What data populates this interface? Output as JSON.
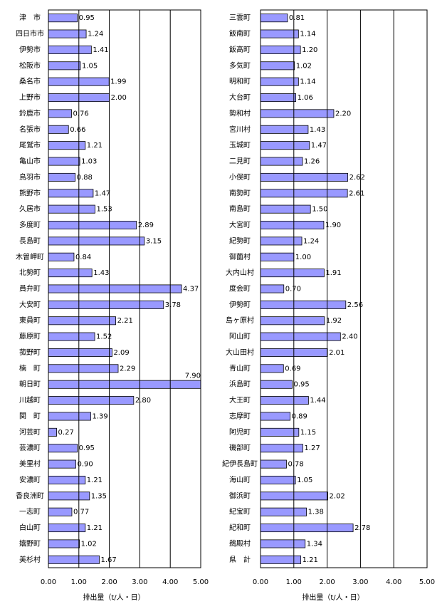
{
  "chart_data": [
    {
      "type": "hbar",
      "xlabel": "排出量（t/人・日）",
      "color": "#9999ff",
      "categories": [
        "津　市",
        "四日市市",
        "伊勢市",
        "松阪市",
        "桑名市",
        "上野市",
        "鈴鹿市",
        "名張市",
        "尾鷲市",
        "亀山市",
        "鳥羽市",
        "熊野市",
        "久居市",
        "多度町",
        "長島町",
        "木曽岬町",
        "北勢町",
        "員弁町",
        "大安町",
        "東員町",
        "藤原町",
        "菰野町",
        "楠　町",
        "朝日町",
        "川越町",
        "関　町",
        "河芸町",
        "芸濃町",
        "美里村",
        "安濃町",
        "香良洲町",
        "一志町",
        "白山町",
        "嬉野町",
        "美杉村"
      ],
      "values": [
        0.95,
        1.24,
        1.41,
        1.05,
        1.99,
        2.0,
        0.76,
        0.66,
        1.21,
        1.03,
        0.88,
        1.47,
        1.53,
        2.89,
        3.15,
        0.84,
        1.43,
        4.37,
        3.78,
        2.21,
        1.52,
        2.09,
        2.29,
        7.9,
        2.8,
        1.39,
        0.27,
        0.95,
        0.9,
        1.21,
        1.35,
        0.77,
        1.21,
        1.02,
        1.67
      ],
      "value_labels": [
        "0.95",
        "1.24",
        "1.41",
        "1.05",
        "1.99",
        "2.00",
        "0.76",
        "0.66",
        "1.21",
        "1.03",
        "0.88",
        "1.47",
        "1.53",
        "2.89",
        "3.15",
        "0.84",
        "1.43",
        "4.37",
        "3.78",
        "2.21",
        "1.52",
        "2.09",
        "2.29",
        "7.90",
        "2.80",
        "1.39",
        "0.27",
        "0.95",
        "0.90",
        "1.21",
        "1.35",
        "0.77",
        "1.21",
        "1.02",
        "1.67"
      ],
      "xlim": [
        0,
        5
      ],
      "xticks": [
        {
          "value": 0,
          "label": "0.00"
        },
        {
          "value": 1,
          "label": "1.00"
        },
        {
          "value": 2,
          "label": "2.00"
        },
        {
          "value": 3,
          "label": "3.00"
        },
        {
          "value": 4,
          "label": "4.00"
        },
        {
          "value": 5,
          "label": "5.00"
        }
      ],
      "grid": true
    },
    {
      "type": "hbar",
      "xlabel": "排出量（t/人・日）",
      "color": "#9999ff",
      "categories": [
        "三雲町",
        "飯南町",
        "飯高町",
        "多気町",
        "明和町",
        "大台町",
        "勢和村",
        "宮川村",
        "玉城町",
        "二見町",
        "小俣町",
        "南勢町",
        "南島町",
        "大宮町",
        "紀勢町",
        "御薗村",
        "大内山村",
        "度会町",
        "伊勢町",
        "島ヶ原村",
        "阿山町",
        "大山田村",
        "青山町",
        "浜島町",
        "大王町",
        "志摩町",
        "阿児町",
        "磯部町",
        "紀伊長島町",
        "海山町",
        "御浜町",
        "紀宝町",
        "紀和町",
        "鵜殿村",
        "県　計"
      ],
      "values": [
        0.81,
        1.14,
        1.2,
        1.02,
        1.14,
        1.06,
        2.2,
        1.43,
        1.47,
        1.26,
        2.62,
        2.61,
        1.5,
        1.9,
        1.24,
        1.0,
        1.91,
        0.7,
        2.56,
        1.92,
        2.4,
        2.01,
        0.69,
        0.95,
        1.44,
        0.89,
        1.15,
        1.27,
        0.78,
        1.05,
        2.02,
        1.38,
        2.78,
        1.34,
        1.21
      ],
      "value_labels": [
        "0.81",
        "1.14",
        "1.20",
        "1.02",
        "1.14",
        "1.06",
        "2.20",
        "1.43",
        "1.47",
        "1.26",
        "2.62",
        "2.61",
        "1.50",
        "1.90",
        "1.24",
        "1.00",
        "1.91",
        "0.70",
        "2.56",
        "1.92",
        "2.40",
        "2.01",
        "0.69",
        "0.95",
        "1.44",
        "0.89",
        "1.15",
        "1.27",
        "0.78",
        "1.05",
        "2.02",
        "1.38",
        "2.78",
        "1.34",
        "1.21"
      ],
      "xlim": [
        0,
        5
      ],
      "xticks": [
        {
          "value": 0,
          "label": "0.00"
        },
        {
          "value": 1,
          "label": "1.00"
        },
        {
          "value": 2,
          "label": "2.00"
        },
        {
          "value": 3,
          "label": "3.00"
        },
        {
          "value": 4,
          "label": "4.00"
        },
        {
          "value": 5,
          "label": "5.00"
        }
      ],
      "grid": true
    }
  ]
}
